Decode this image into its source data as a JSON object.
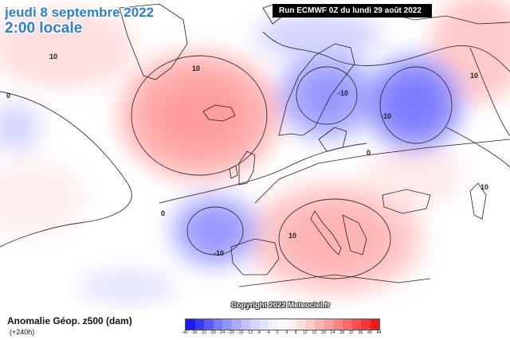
{
  "header": {
    "date_line": "jeudi 8 septembre 2022",
    "time_line": "2:00 locale",
    "run_info": "Run ECMWF 0Z du lundi 29 août 2022"
  },
  "copyright": "Copyright 2022 Meteociel.fr",
  "legend": {
    "title": "Anomalie Géop. z500 (dam)",
    "subtitle": "(+240h)",
    "ticks": [
      "-40",
      "-36",
      "-32",
      "-28",
      "-24",
      "-20",
      "-16",
      "-12",
      "-8",
      "-4",
      "0",
      "4",
      "8",
      "12",
      "16",
      "20",
      "24",
      "28",
      "32",
      "36",
      "40",
      "44"
    ],
    "colors": [
      "#1a1aff",
      "#3a3aff",
      "#5a5aff",
      "#7a7aff",
      "#9494ff",
      "#adadff",
      "#c2c2ff",
      "#d4d4ff",
      "#e2e2ff",
      "#f0f0ff",
      "#ffffff",
      "#fff0f0",
      "#ffdede",
      "#ffcaca",
      "#ffb4b4",
      "#ff9c9c",
      "#ff8282",
      "#ff6868",
      "#ff4e4e",
      "#ff3232",
      "#f01a1a"
    ]
  },
  "contour_labels": {
    "l10_nw": "10",
    "l10_ne": "10",
    "l10_center": "10",
    "l10_scand": "-10",
    "l10_russia": "-10",
    "l0_west": "0",
    "l0_mid": "0",
    "l0_atl": "0",
    "l10_biscay": "-10",
    "l10_med": "10",
    "l10_far_west": "10"
  }
}
